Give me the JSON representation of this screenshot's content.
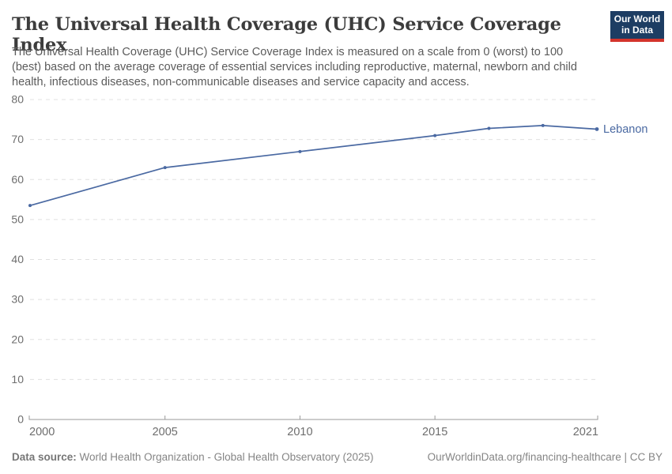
{
  "header": {
    "title": "The Universal Health Coverage (UHC) Service Coverage Index",
    "subtitle": "The Universal Health Coverage (UHC) Service Coverage Index is measured on a scale from 0 (worst) to 100 (best) based on the average coverage of essential services including reproductive, maternal, newborn and child health, infectious diseases, non-communicable diseases and service capacity and access.",
    "logo_line1": "Our World",
    "logo_line2": "in Data"
  },
  "chart_data": {
    "type": "line",
    "title": "The Universal Health Coverage (UHC) Service Coverage Index",
    "series": [
      {
        "name": "Lebanon",
        "color": "#4a69a2",
        "x": [
          2000,
          2005,
          2010,
          2015,
          2017,
          2019,
          2021
        ],
        "values": [
          53.5,
          63,
          67,
          71,
          72.8,
          73.5,
          72.6
        ]
      }
    ],
    "xlabel": "",
    "ylabel": "",
    "xlim": [
      2000,
      2021
    ],
    "ylim": [
      0,
      80
    ],
    "x_ticks": [
      2000,
      2005,
      2010,
      2015,
      2021
    ],
    "y_ticks": [
      0,
      10,
      20,
      30,
      40,
      50,
      60,
      70,
      80
    ],
    "grid": "horizontal-dashed",
    "legend_position": "end-of-line-label",
    "end_label": "Lebanon"
  },
  "footer": {
    "datasource_label": "Data source:",
    "datasource_text": "World Health Organization - Global Health Observatory (2025)",
    "credit": "OurWorldinData.org/financing-healthcare | CC BY"
  },
  "colors": {
    "line": "#4a69a2",
    "end_label": "#4a69a2",
    "gridline": "#e0e0e0",
    "axis": "#999999",
    "tick_text": "#6e6e6e",
    "title": "#3c3c3c",
    "subtitle": "#5b5b5b",
    "logo_bg": "#1d3d63",
    "logo_bar": "#d4342c"
  }
}
